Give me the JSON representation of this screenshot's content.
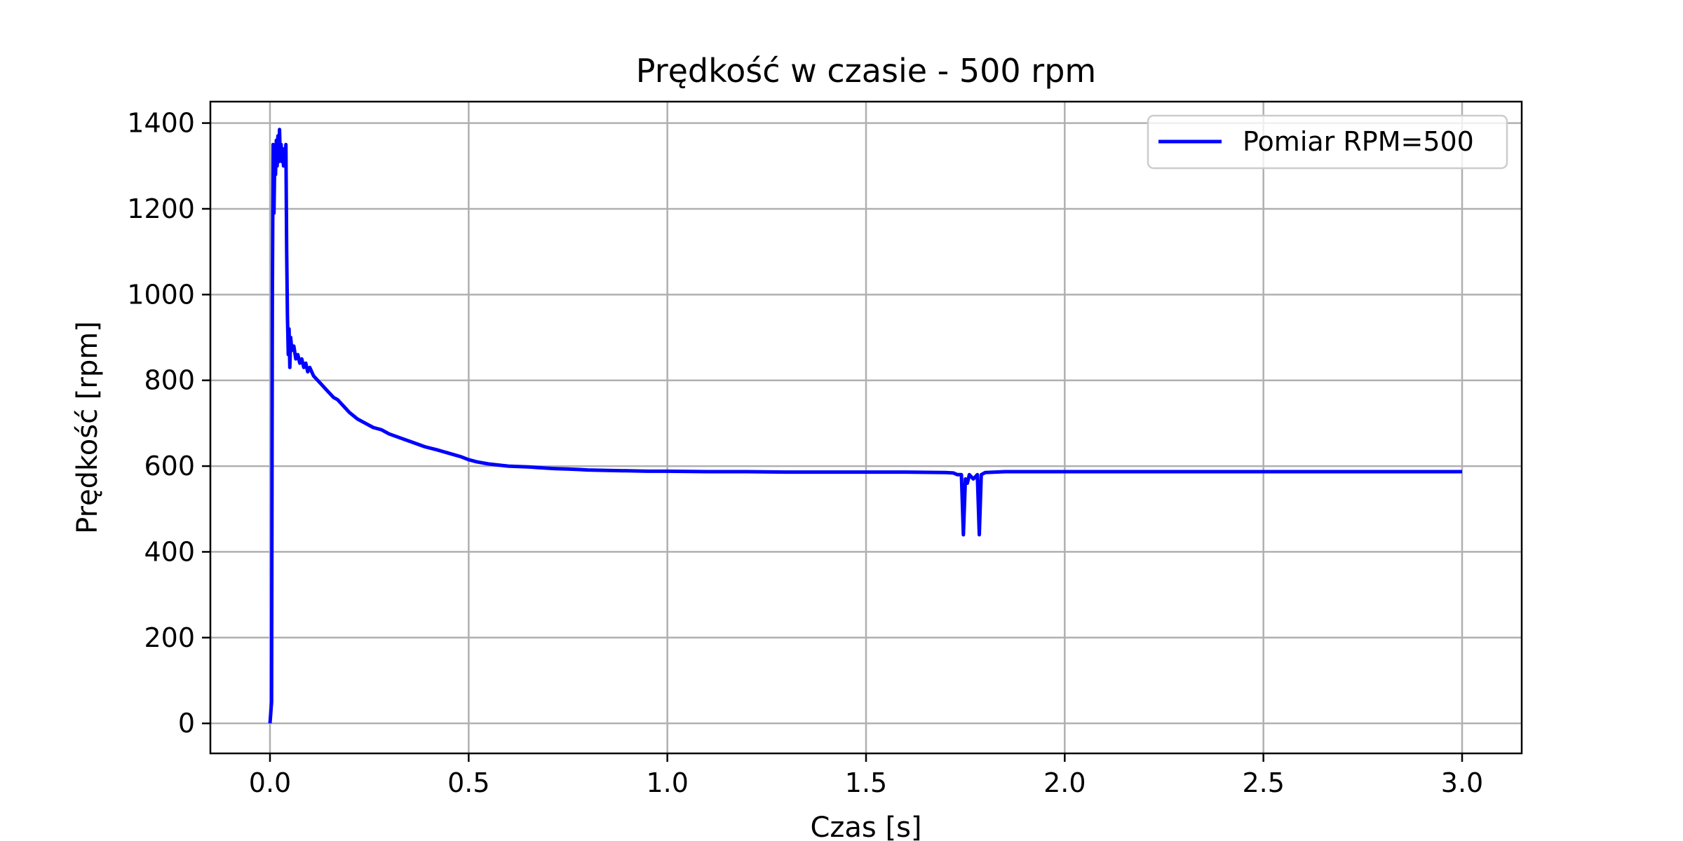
{
  "chart_data": {
    "type": "line",
    "title": "Prędkość w czasie - 500 rpm",
    "xlabel": "Czas [s]",
    "ylabel": "Prędkość [rpm]",
    "xlim": [
      -0.15,
      3.15
    ],
    "ylim": [
      -70,
      1450
    ],
    "xticks": [
      0.0,
      0.5,
      1.0,
      1.5,
      2.0,
      2.5,
      3.0
    ],
    "xtick_labels": [
      "0.0",
      "0.5",
      "1.0",
      "1.5",
      "2.0",
      "2.5",
      "3.0"
    ],
    "yticks": [
      0,
      200,
      400,
      600,
      800,
      1000,
      1200,
      1400
    ],
    "ytick_labels": [
      "0",
      "200",
      "400",
      "600",
      "800",
      "1000",
      "1200",
      "1400"
    ],
    "grid": true,
    "legend_position": "upper right",
    "series": [
      {
        "name": "Pomiar RPM=500",
        "color": "#0000ff",
        "x": [
          0.0,
          0.004,
          0.006,
          0.008,
          0.01,
          0.012,
          0.014,
          0.016,
          0.018,
          0.02,
          0.022,
          0.024,
          0.026,
          0.028,
          0.03,
          0.032,
          0.034,
          0.036,
          0.038,
          0.04,
          0.042,
          0.044,
          0.046,
          0.048,
          0.05,
          0.052,
          0.055,
          0.06,
          0.065,
          0.07,
          0.075,
          0.08,
          0.085,
          0.09,
          0.095,
          0.1,
          0.11,
          0.12,
          0.13,
          0.14,
          0.15,
          0.16,
          0.17,
          0.18,
          0.19,
          0.2,
          0.22,
          0.24,
          0.26,
          0.28,
          0.3,
          0.33,
          0.36,
          0.39,
          0.42,
          0.45,
          0.48,
          0.5,
          0.52,
          0.55,
          0.6,
          0.65,
          0.7,
          0.72,
          0.75,
          0.78,
          0.8,
          0.85,
          0.9,
          0.95,
          1.0,
          1.1,
          1.2,
          1.3,
          1.35,
          1.4,
          1.5,
          1.6,
          1.7,
          1.72,
          1.73,
          1.74,
          1.745,
          1.75,
          1.755,
          1.76,
          1.77,
          1.78,
          1.785,
          1.79,
          1.8,
          1.85,
          1.9,
          2.0,
          2.2,
          2.4,
          2.6,
          2.8,
          3.0
        ],
        "y": [
          0,
          50,
          1000,
          1350,
          1190,
          1320,
          1280,
          1360,
          1300,
          1370,
          1310,
          1385,
          1320,
          1350,
          1310,
          1340,
          1300,
          1330,
          1310,
          1350,
          1100,
          950,
          860,
          920,
          830,
          900,
          870,
          880,
          850,
          860,
          840,
          850,
          830,
          840,
          820,
          830,
          810,
          800,
          790,
          780,
          770,
          760,
          755,
          745,
          735,
          725,
          710,
          700,
          690,
          685,
          675,
          665,
          655,
          645,
          638,
          630,
          622,
          615,
          610,
          605,
          600,
          598,
          595,
          594,
          593,
          592,
          591,
          590,
          589,
          588,
          588,
          587,
          587,
          586,
          586,
          586,
          586,
          586,
          585,
          584,
          580,
          580,
          440,
          570,
          560,
          580,
          570,
          580,
          440,
          580,
          585,
          587,
          587,
          587,
          587,
          587,
          587,
          587,
          587
        ]
      }
    ]
  }
}
